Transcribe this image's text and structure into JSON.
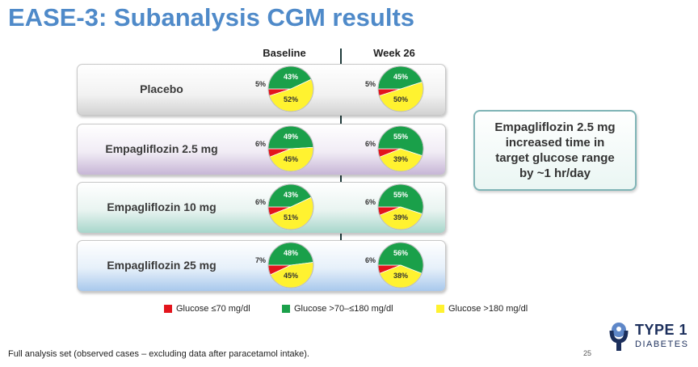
{
  "title": "EASE-3: Subanalysis CGM results",
  "callout": {
    "lines": [
      "Empagliflozin 2.5 mg",
      "increased time in",
      "target glucose range",
      "by ~1 hr/day"
    ]
  },
  "footnote": "Full analysis set (observed cases – excluding data after paracetamol intake).",
  "page_number": "25",
  "logo": {
    "top": "TYPE 1",
    "bottom": "DIABETES"
  },
  "colors": {
    "red": "#e3141c",
    "green": "#1aa04a",
    "yellow": "#fff230",
    "title": "#4f8ac9"
  },
  "chart_data": {
    "type": "pie",
    "columns": [
      "Baseline",
      "Week 26"
    ],
    "legend": [
      {
        "label": "Glucose ≤70 mg/dl",
        "color": "#e3141c"
      },
      {
        "label": "Glucose >70–≤180 mg/dl",
        "color": "#1aa04a"
      },
      {
        "label": "Glucose >180 mg/dl",
        "color": "#fff230"
      }
    ],
    "rows": [
      {
        "label": "Placebo",
        "baseline": [
          5,
          43,
          52
        ],
        "week26": [
          5,
          45,
          50
        ]
      },
      {
        "label": "Empagliflozin 2.5 mg",
        "baseline": [
          6,
          49,
          45
        ],
        "week26": [
          6,
          55,
          39
        ]
      },
      {
        "label": "Empagliflozin 10 mg",
        "baseline": [
          6,
          43,
          51
        ],
        "week26": [
          6,
          55,
          39
        ]
      },
      {
        "label": "Empagliflozin 25 mg",
        "baseline": [
          7,
          48,
          45
        ],
        "week26": [
          6,
          56,
          38
        ]
      }
    ]
  }
}
